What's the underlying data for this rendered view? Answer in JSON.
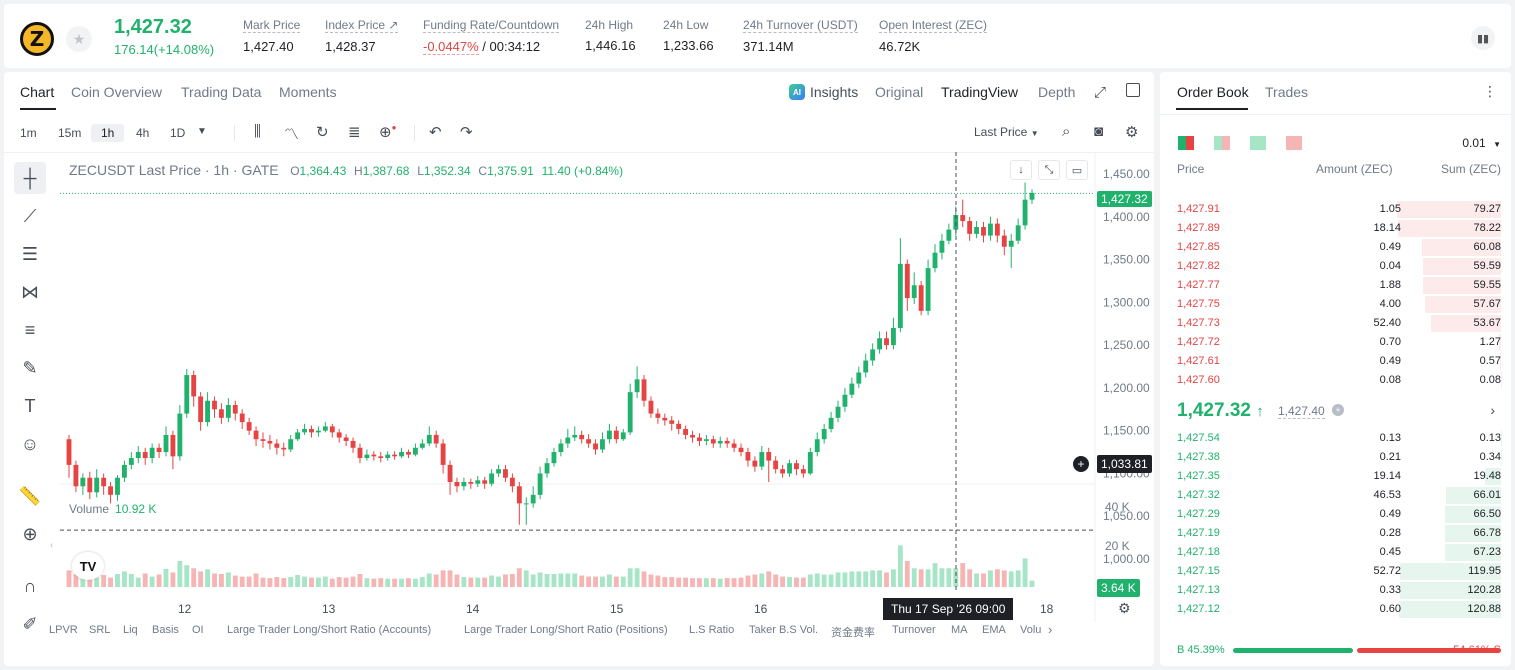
{
  "header": {
    "coin_logo_letter": "Z",
    "last_price": "1,427.32",
    "change": "176.14(+14.08%)",
    "stats": [
      {
        "label": "Mark Price",
        "value": "1,427.40"
      },
      {
        "label": "Index Price ↗",
        "value": "1,428.37"
      },
      {
        "label": "Funding Rate/Countdown",
        "value_red": "-0.0447%",
        "value": " / 00:34:12"
      },
      {
        "label": "24h High",
        "value": "1,446.16"
      },
      {
        "label": "24h Low",
        "value": "1,233.66"
      },
      {
        "label": "24h Turnover (USDT)",
        "value": "371.14M"
      },
      {
        "label": "Open Interest (ZEC)",
        "value": "46.72K"
      }
    ]
  },
  "chart_tabs": [
    "Chart",
    "Coin Overview",
    "Trading Data",
    "Moments"
  ],
  "view_tabs": {
    "ai": "AI",
    "insights": "Insights",
    "original": "Original",
    "tradingview": "TradingView",
    "depth": "Depth"
  },
  "timeframes": [
    "1m",
    "15m",
    "1h",
    "4h",
    "1D"
  ],
  "price_type": "Last Price",
  "legend": {
    "symbol": "ZECUSDT Last Price · 1h · GATE",
    "o_label": "O",
    "o": "1,364.43",
    "h_label": "H",
    "h": "1,387.68",
    "l_label": "L",
    "l": "1,352.34",
    "c_label": "C",
    "c": "1,375.91",
    "chg": "11.40 (+0.84%)"
  },
  "volume_legend": {
    "label": "Volume",
    "value": "10.92 K"
  },
  "tv_logo": "TV",
  "crosshair": {
    "price": "1,033.81",
    "time": "Thu 17 Sep '26   09:00"
  },
  "current_price_tag": "1,427.32",
  "volume_tag": "3.64 K",
  "indicators": [
    "LPVR",
    "SRL",
    "Liq",
    "Basis",
    "OI",
    "Large Trader Long/Short Ratio (Accounts)",
    "Large Trader Long/Short Ratio (Positions)",
    "L.S Ratio",
    "Taker B.S Vol.",
    "资金费率",
    "Turnover",
    "MA",
    "EMA",
    "Volu"
  ],
  "chart_data": {
    "type": "candlestick",
    "x_ticks": [
      "12",
      "13",
      "14",
      "15",
      "16",
      "18"
    ],
    "y_ticks": [
      "1,450.00",
      "1,400.00",
      "1,350.00",
      "1,300.00",
      "1,250.00",
      "1,200.00",
      "1,150.00",
      "1,100.00",
      "1,050.00",
      "1,000.00"
    ],
    "ylim": [
      1000,
      1450
    ],
    "volume_ticks": [
      "40 K",
      "20 K"
    ],
    "candles": [
      [
        1140,
        1110,
        1145,
        1095,
        5
      ],
      [
        1110,
        1085,
        1115,
        1078,
        4
      ],
      [
        1085,
        1095,
        1100,
        1075,
        3
      ],
      [
        1095,
        1078,
        1102,
        1070,
        3
      ],
      [
        1078,
        1095,
        1105,
        1072,
        4
      ],
      [
        1095,
        1085,
        1100,
        1075,
        3
      ],
      [
        1085,
        1075,
        1090,
        1065,
        3
      ],
      [
        1075,
        1095,
        1098,
        1068,
        4
      ],
      [
        1095,
        1110,
        1115,
        1090,
        4
      ],
      [
        1110,
        1118,
        1125,
        1105,
        3
      ],
      [
        1118,
        1125,
        1132,
        1112,
        3
      ],
      [
        1125,
        1118,
        1130,
        1110,
        3
      ],
      [
        1118,
        1130,
        1135,
        1112,
        3
      ],
      [
        1130,
        1125,
        1135,
        1118,
        3
      ],
      [
        1125,
        1145,
        1155,
        1120,
        5
      ],
      [
        1145,
        1120,
        1150,
        1105,
        4
      ],
      [
        1120,
        1170,
        1180,
        1115,
        9
      ],
      [
        1170,
        1215,
        1222,
        1165,
        8
      ],
      [
        1215,
        1190,
        1220,
        1178,
        6
      ],
      [
        1190,
        1160,
        1195,
        1150,
        5
      ],
      [
        1160,
        1185,
        1195,
        1155,
        5
      ],
      [
        1185,
        1175,
        1190,
        1165,
        4
      ],
      [
        1175,
        1165,
        1182,
        1158,
        4
      ],
      [
        1165,
        1180,
        1188,
        1160,
        4
      ],
      [
        1180,
        1170,
        1185,
        1162,
        3
      ],
      [
        1170,
        1160,
        1175,
        1152,
        3
      ],
      [
        1160,
        1150,
        1165,
        1145,
        3
      ],
      [
        1150,
        1140,
        1155,
        1132,
        4
      ],
      [
        1140,
        1138,
        1148,
        1130,
        3
      ],
      [
        1138,
        1135,
        1145,
        1128,
        3
      ],
      [
        1135,
        1130,
        1140,
        1122,
        3
      ],
      [
        1130,
        1128,
        1136,
        1120,
        3
      ],
      [
        1128,
        1140,
        1145,
        1125,
        3
      ],
      [
        1140,
        1148,
        1152,
        1138,
        3
      ],
      [
        1148,
        1152,
        1158,
        1145,
        3
      ],
      [
        1152,
        1148,
        1156,
        1142,
        3
      ],
      [
        1148,
        1150,
        1155,
        1143,
        3
      ],
      [
        1150,
        1155,
        1160,
        1148,
        3
      ],
      [
        1155,
        1148,
        1158,
        1142,
        3
      ],
      [
        1148,
        1142,
        1152,
        1136,
        3
      ],
      [
        1142,
        1138,
        1146,
        1132,
        3
      ],
      [
        1138,
        1130,
        1142,
        1124,
        3
      ],
      [
        1130,
        1118,
        1135,
        1112,
        4
      ],
      [
        1118,
        1122,
        1128,
        1115,
        3
      ],
      [
        1122,
        1120,
        1126,
        1115,
        3
      ],
      [
        1120,
        1118,
        1125,
        1113,
        3
      ],
      [
        1118,
        1122,
        1126,
        1115,
        3
      ],
      [
        1122,
        1120,
        1126,
        1116,
        3
      ],
      [
        1120,
        1125,
        1130,
        1118,
        3
      ],
      [
        1125,
        1122,
        1128,
        1118,
        3
      ],
      [
        1122,
        1130,
        1135,
        1120,
        3
      ],
      [
        1130,
        1135,
        1140,
        1128,
        3
      ],
      [
        1135,
        1145,
        1155,
        1132,
        4
      ],
      [
        1145,
        1135,
        1150,
        1130,
        4
      ],
      [
        1135,
        1110,
        1140,
        1100,
        6
      ],
      [
        1110,
        1090,
        1115,
        1075,
        6
      ],
      [
        1090,
        1085,
        1095,
        1078,
        4
      ],
      [
        1085,
        1090,
        1095,
        1080,
        3
      ],
      [
        1090,
        1088,
        1094,
        1082,
        3
      ],
      [
        1088,
        1092,
        1097,
        1084,
        3
      ],
      [
        1092,
        1088,
        1096,
        1082,
        3
      ],
      [
        1088,
        1100,
        1105,
        1085,
        3
      ],
      [
        1100,
        1105,
        1110,
        1096,
        3
      ],
      [
        1105,
        1095,
        1110,
        1090,
        4
      ],
      [
        1095,
        1085,
        1100,
        1078,
        4
      ],
      [
        1085,
        1065,
        1090,
        1040,
        6
      ],
      [
        1065,
        1065,
        1072,
        1040,
        5
      ],
      [
        1065,
        1075,
        1085,
        1060,
        4
      ],
      [
        1075,
        1100,
        1108,
        1070,
        5
      ],
      [
        1100,
        1112,
        1118,
        1095,
        4
      ],
      [
        1112,
        1125,
        1130,
        1108,
        4
      ],
      [
        1125,
        1135,
        1140,
        1120,
        4
      ],
      [
        1135,
        1142,
        1152,
        1130,
        4
      ],
      [
        1142,
        1145,
        1155,
        1138,
        4
      ],
      [
        1145,
        1140,
        1150,
        1135,
        3
      ],
      [
        1140,
        1135,
        1146,
        1130,
        3
      ],
      [
        1135,
        1128,
        1140,
        1122,
        3
      ],
      [
        1128,
        1140,
        1148,
        1124,
        3
      ],
      [
        1140,
        1150,
        1158,
        1135,
        4
      ],
      [
        1150,
        1140,
        1155,
        1135,
        3
      ],
      [
        1140,
        1148,
        1152,
        1138,
        3
      ],
      [
        1148,
        1195,
        1205,
        1145,
        6
      ],
      [
        1195,
        1210,
        1225,
        1188,
        6
      ],
      [
        1210,
        1185,
        1215,
        1178,
        5
      ],
      [
        1185,
        1170,
        1190,
        1165,
        4
      ],
      [
        1170,
        1165,
        1176,
        1158,
        4
      ],
      [
        1165,
        1162,
        1170,
        1156,
        3
      ],
      [
        1162,
        1158,
        1167,
        1150,
        3
      ],
      [
        1158,
        1152,
        1162,
        1146,
        3
      ],
      [
        1152,
        1145,
        1156,
        1140,
        3
      ],
      [
        1145,
        1142,
        1150,
        1136,
        3
      ],
      [
        1142,
        1138,
        1147,
        1132,
        3
      ],
      [
        1138,
        1140,
        1145,
        1133,
        3
      ],
      [
        1140,
        1135,
        1144,
        1130,
        3
      ],
      [
        1135,
        1138,
        1143,
        1130,
        3
      ],
      [
        1138,
        1135,
        1142,
        1130,
        3
      ],
      [
        1135,
        1130,
        1140,
        1125,
        3
      ],
      [
        1130,
        1125,
        1135,
        1120,
        3
      ],
      [
        1125,
        1115,
        1130,
        1108,
        4
      ],
      [
        1115,
        1108,
        1120,
        1102,
        4
      ],
      [
        1108,
        1125,
        1132,
        1104,
        4
      ],
      [
        1125,
        1115,
        1130,
        1090,
        5
      ],
      [
        1115,
        1105,
        1120,
        1100,
        4
      ],
      [
        1105,
        1100,
        1110,
        1095,
        3
      ],
      [
        1100,
        1112,
        1116,
        1096,
        3
      ],
      [
        1112,
        1105,
        1116,
        1098,
        3
      ],
      [
        1105,
        1100,
        1110,
        1095,
        3
      ],
      [
        1100,
        1125,
        1130,
        1098,
        4
      ],
      [
        1125,
        1140,
        1148,
        1120,
        4
      ],
      [
        1140,
        1152,
        1158,
        1135,
        4
      ],
      [
        1152,
        1165,
        1172,
        1148,
        4
      ],
      [
        1165,
        1178,
        1185,
        1160,
        5
      ],
      [
        1178,
        1192,
        1200,
        1172,
        5
      ],
      [
        1192,
        1205,
        1212,
        1188,
        5
      ],
      [
        1205,
        1218,
        1225,
        1200,
        5
      ],
      [
        1218,
        1232,
        1240,
        1212,
        5
      ],
      [
        1232,
        1245,
        1252,
        1226,
        5
      ],
      [
        1245,
        1258,
        1266,
        1240,
        5
      ],
      [
        1258,
        1250,
        1266,
        1245,
        4
      ],
      [
        1250,
        1270,
        1282,
        1245,
        5
      ],
      [
        1270,
        1345,
        1375,
        1265,
        15
      ],
      [
        1345,
        1305,
        1350,
        1290,
        9
      ],
      [
        1305,
        1320,
        1335,
        1298,
        6
      ],
      [
        1320,
        1290,
        1325,
        1285,
        6
      ],
      [
        1290,
        1340,
        1350,
        1285,
        6
      ],
      [
        1340,
        1358,
        1368,
        1335,
        6
      ],
      [
        1358,
        1372,
        1380,
        1350,
        6
      ],
      [
        1372,
        1385,
        1392,
        1368,
        6
      ],
      [
        1385,
        1402,
        1412,
        1378,
        6
      ],
      [
        1402,
        1395,
        1420,
        1388,
        6
      ],
      [
        1395,
        1380,
        1400,
        1372,
        5
      ],
      [
        1380,
        1388,
        1395,
        1375,
        4
      ],
      [
        1388,
        1378,
        1394,
        1370,
        4
      ],
      [
        1378,
        1392,
        1400,
        1372,
        5
      ],
      [
        1392,
        1378,
        1398,
        1370,
        5
      ],
      [
        1378,
        1365,
        1385,
        1355,
        5
      ],
      [
        1365,
        1372,
        1380,
        1340,
        5
      ],
      [
        1372,
        1390,
        1398,
        1368,
        5
      ],
      [
        1390,
        1420,
        1440,
        1385,
        10
      ],
      [
        1420,
        1428,
        1432,
        1415,
        2
      ]
    ],
    "volume": [
      3.2,
      2.4,
      2.0,
      2.2,
      1.8,
      2.3,
      1.8,
      2.5,
      3.0,
      2.5,
      1.8,
      2.6,
      2.0,
      2.4,
      3.5,
      2.8,
      5.0,
      4.2,
      3.6,
      3.0,
      3.4,
      2.6,
      2.5,
      2.8,
      2.2,
      2.0,
      2.0,
      2.6,
      1.8,
      1.7,
      1.9,
      1.7,
      1.9,
      2.3,
      2.0,
      1.8,
      1.8,
      2.0,
      1.6,
      1.9,
      1.8,
      2.0,
      2.5,
      1.7,
      1.6,
      1.7,
      1.6,
      1.6,
      1.6,
      1.7,
      1.6,
      1.9,
      2.6,
      2.4,
      3.2,
      3.2,
      2.4,
      1.9,
      1.8,
      1.8,
      1.8,
      2.2,
      2.0,
      2.4,
      2.5,
      3.6,
      3.2,
      2.4,
      2.8,
      2.5,
      2.5,
      2.6,
      2.6,
      2.6,
      2.2,
      2.0,
      2.0,
      2.0,
      2.4,
      2.0,
      2.0,
      3.6,
      3.6,
      3.0,
      2.4,
      2.2,
      1.9,
      1.9,
      1.8,
      1.8,
      1.7,
      1.7,
      1.7,
      1.7,
      1.6,
      1.7,
      1.7,
      1.8,
      2.2,
      2.4,
      2.6,
      3.0,
      2.4,
      2.0,
      1.9,
      1.8,
      1.8,
      2.4,
      2.6,
      2.4,
      2.4,
      2.8,
      2.8,
      3.0,
      3.0,
      3.0,
      3.2,
      3.2,
      2.8,
      3.4,
      8.0,
      5.0,
      3.6,
      3.4,
      3.4,
      4.6,
      3.6,
      3.6,
      3.6,
      4.6,
      3.4,
      2.6,
      2.6,
      3.2,
      3.4,
      3.2,
      3.0,
      3.2,
      5.5,
      1.2
    ]
  },
  "orderbook": {
    "tabs": [
      "Order Book",
      "Trades"
    ],
    "precision": "0.01",
    "headers": {
      "price": "Price",
      "amount": "Amount (ZEC)",
      "sum": "Sum (ZEC)"
    },
    "asks": [
      {
        "price": "1,427.91",
        "amount": "1.05",
        "sum": "79.27"
      },
      {
        "price": "1,427.89",
        "amount": "18.14",
        "sum": "78.22"
      },
      {
        "price": "1,427.85",
        "amount": "0.49",
        "sum": "60.08"
      },
      {
        "price": "1,427.82",
        "amount": "0.04",
        "sum": "59.59"
      },
      {
        "price": "1,427.77",
        "amount": "1.88",
        "sum": "59.55"
      },
      {
        "price": "1,427.75",
        "amount": "4.00",
        "sum": "57.67"
      },
      {
        "price": "1,427.73",
        "amount": "52.40",
        "sum": "53.67"
      },
      {
        "price": "1,427.72",
        "amount": "0.70",
        "sum": "1.27"
      },
      {
        "price": "1,427.61",
        "amount": "0.49",
        "sum": "0.57"
      },
      {
        "price": "1,427.60",
        "amount": "0.08",
        "sum": "0.08"
      }
    ],
    "mid": {
      "price": "1,427.32",
      "arrow": "↑",
      "mark": "1,427.40"
    },
    "bids": [
      {
        "price": "1,427.54",
        "amount": "0.13",
        "sum": "0.13"
      },
      {
        "price": "1,427.38",
        "amount": "0.21",
        "sum": "0.34"
      },
      {
        "price": "1,427.35",
        "amount": "19.14",
        "sum": "19.48"
      },
      {
        "price": "1,427.32",
        "amount": "46.53",
        "sum": "66.01"
      },
      {
        "price": "1,427.29",
        "amount": "0.49",
        "sum": "66.50"
      },
      {
        "price": "1,427.19",
        "amount": "0.28",
        "sum": "66.78"
      },
      {
        "price": "1,427.18",
        "amount": "0.45",
        "sum": "67.23"
      },
      {
        "price": "1,427.15",
        "amount": "52.72",
        "sum": "119.95"
      },
      {
        "price": "1,427.13",
        "amount": "0.33",
        "sum": "120.28"
      },
      {
        "price": "1,427.12",
        "amount": "0.60",
        "sum": "120.88"
      }
    ],
    "ratio": {
      "buy": "B 45.39%",
      "sell": "54.61% S",
      "buy_pct": 45.39
    }
  },
  "colors": {
    "up": "#20b26c",
    "down": "#e64343"
  }
}
